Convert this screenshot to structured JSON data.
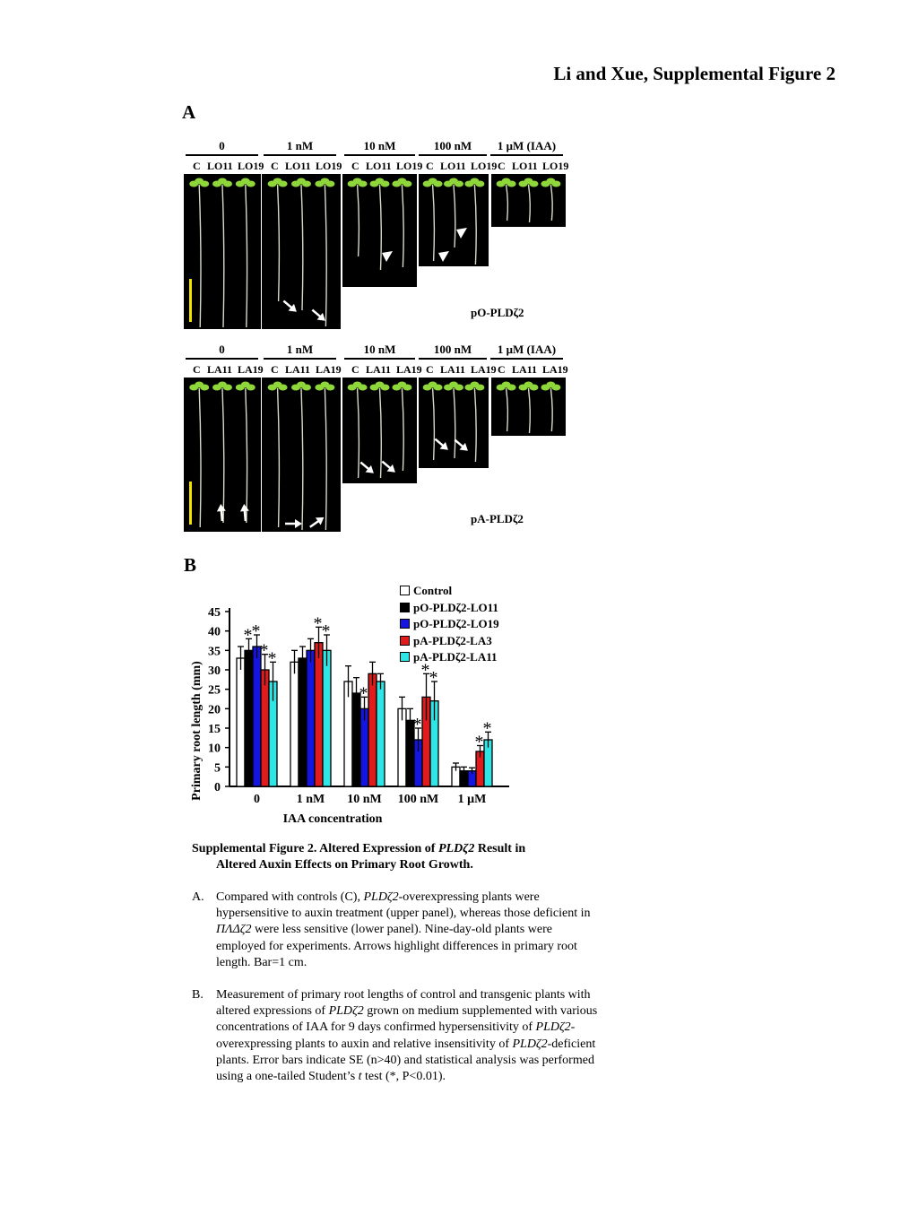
{
  "figure_title": "Li and Xue, Supplemental Figure 2",
  "panel_a": {
    "letter": "A",
    "concentrations": [
      "0",
      "1 nM",
      "10 nM",
      "100 nM",
      "1 μM (IAA)"
    ],
    "upper": {
      "genotypes": [
        [
          "C",
          "LO11",
          "LO19"
        ],
        [
          "C",
          "LO11",
          "LO19"
        ],
        [
          "C",
          "LO11",
          "LO19"
        ],
        [
          "C",
          "LO11",
          "LO19"
        ],
        [
          "C",
          "LO11",
          "LO19"
        ]
      ],
      "label": "pO-PLDζ2"
    },
    "lower": {
      "genotypes": [
        [
          "C",
          "LA11",
          "LA19"
        ],
        [
          "C",
          "LA11",
          "LA19"
        ],
        [
          "C",
          "LA11",
          "LA19"
        ],
        [
          "C",
          "LA11",
          "LA19"
        ],
        [
          "C",
          "LA11",
          "LA19"
        ]
      ],
      "label": "pA-PLDζ2"
    },
    "colors": {
      "leaf": "#8fd63a",
      "root": "#d9d9c8",
      "scale_bar": "#f2e200"
    }
  },
  "panel_b": {
    "letter": "B"
  },
  "chart_data": {
    "type": "bar",
    "categories": [
      "0",
      "1 nM",
      "10 nM",
      "100 nM",
      "1 μM"
    ],
    "xlabel": "IAA concentration",
    "ylabel": "Primary root length (mm)",
    "ylim": [
      0,
      45
    ],
    "yticks": [
      0,
      5,
      10,
      15,
      20,
      25,
      30,
      35,
      40,
      45
    ],
    "legend_position": "top-right",
    "series": [
      {
        "name": "Control",
        "color": "#ffffff",
        "values": [
          33,
          32,
          27,
          20,
          5
        ],
        "errors": [
          3,
          3,
          4,
          3,
          1
        ],
        "significant": [
          false,
          false,
          false,
          false,
          false
        ]
      },
      {
        "name": "pO-PLDζ2-LO11",
        "color": "#000000",
        "values": [
          35,
          33,
          24,
          17,
          4
        ],
        "errors": [
          3,
          3,
          4,
          3,
          1
        ],
        "significant": [
          true,
          false,
          false,
          false,
          false
        ]
      },
      {
        "name": "pO-PLDζ2-LO19",
        "color": "#1515e0",
        "values": [
          36,
          35,
          20,
          12,
          4
        ],
        "errors": [
          3,
          3,
          3,
          3,
          0.8
        ],
        "significant": [
          true,
          false,
          true,
          true,
          false
        ]
      },
      {
        "name": "pA-PLDζ2-LA3",
        "color": "#e01b1b",
        "values": [
          30,
          37,
          29,
          23,
          9
        ],
        "errors": [
          4,
          4,
          3,
          6,
          1.5
        ],
        "significant": [
          true,
          true,
          false,
          true,
          true
        ]
      },
      {
        "name": "pA-PLDζ2-LA11",
        "color": "#2ee6e6",
        "values": [
          27,
          35,
          27,
          22,
          12
        ],
        "errors": [
          5,
          4,
          2,
          5,
          2
        ],
        "significant": [
          true,
          true,
          false,
          true,
          true
        ]
      }
    ],
    "significance_marker": "*"
  },
  "caption": {
    "title_line1_pre": "Supplemental Figure 2. Altered Expression of ",
    "title_gene": "PLDζ2",
    "title_line1_post": " Result in",
    "title_line2": "Altered Auxin Effects on Primary Root Growth.",
    "item_a_letter": "A.",
    "item_a_1": "Compared with controls (C), ",
    "item_a_gene1": "PLDζ2",
    "item_a_2": "-overexpressing plants were hypersensitive to auxin treatment (upper panel), whereas those deficient in ",
    "item_a_gene2": "ΠΛΔζ2",
    "item_a_3": " were less sensitive (lower panel). Nine-day-old plants were employed for experiments. Arrows highlight differences in primary root length. Bar=1 cm.",
    "item_b_letter": "B.",
    "item_b_1": "Measurement of primary root lengths of control and transgenic plants with altered expressions of ",
    "item_b_gene1": "PLDζ2",
    "item_b_2": " grown on medium supplemented with various concentrations of IAA for 9 days confirmed hypersensitivity of ",
    "item_b_gene2": "PLDζ2",
    "item_b_3": "-overexpressing plants to auxin and relative insensitivity of ",
    "item_b_gene3": "PLDζ2",
    "item_b_4": "-deficient plants. Error bars indicate SE (n>40) and statistical analysis was performed using a one-tailed Student’s ",
    "item_b_t": "t",
    "item_b_5": " test (*, P<0.01)."
  }
}
